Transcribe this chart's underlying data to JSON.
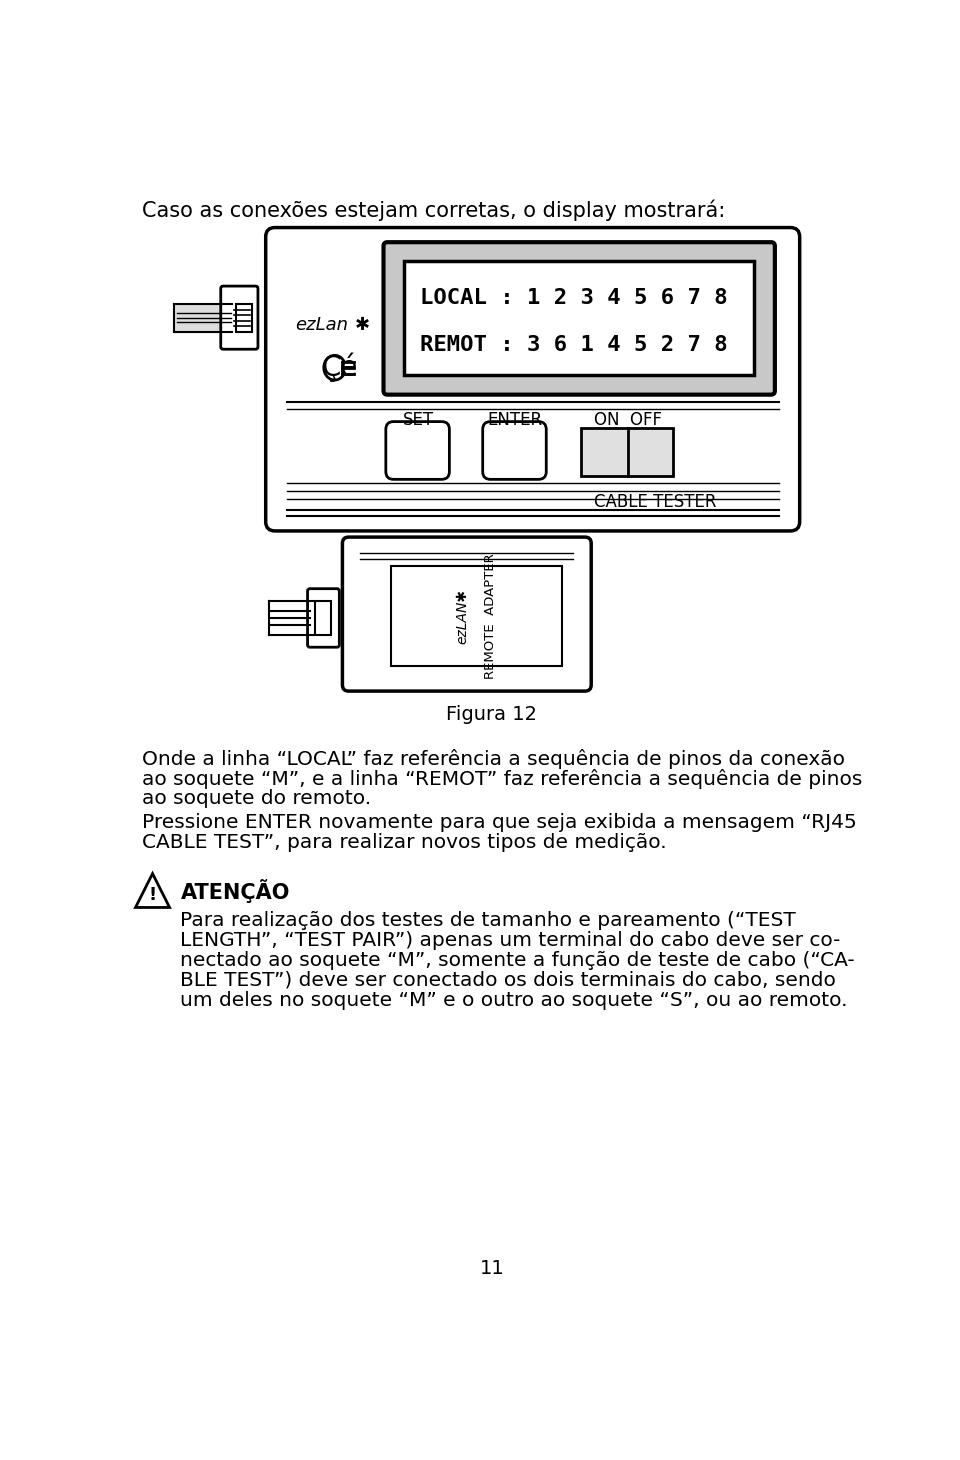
{
  "bg_color": "#ffffff",
  "text_color": "#000000",
  "title_text": "Caso as conexões estejam corretas, o display mostrará:",
  "figura_label": "Figura 12",
  "page_number": "11",
  "display_line1": "LOCAL : 1 2 3 4 5 6 7 8",
  "display_line2": "REMOT : 3 6 1 4 5 2 7 8",
  "button_set": "SET",
  "button_enter": "ENTER",
  "button_onoff": "ON  OFF",
  "cable_tester_label": "CABLE TESTER",
  "ezlan_label": "ezLan",
  "atencao_title": "ATENÇÃO",
  "p1_line1": "Onde a linha “LOCAL” faz referência a sequência de pinos da conexão",
  "p1_line2": "ao soquete “M”, e a linha “REMOT” faz referência a sequência de pinos",
  "p1_line3": "ao soquete do remoto.",
  "p2_line1": "Pressione ENTER novamente para que seja exibida a mensagem “RJ45",
  "p2_line2": "CABLE TEST”, para realizar novos tipos de medição.",
  "att_line1": "Para realização dos testes de tamanho e pareamento (“TEST",
  "att_line2": "LENGTH”, “TEST PAIR”) apenas um terminal do cabo deve ser co-",
  "att_line3": "nectado ao soquete “M”, somente a função de teste de cabo (“CA-",
  "att_line4": "BLE TEST”) deve ser conectado os dois terminais do cabo, sendo",
  "att_line5": "um deles no soquete “M” e o outro ao soquete “S”, ou ao remoto."
}
